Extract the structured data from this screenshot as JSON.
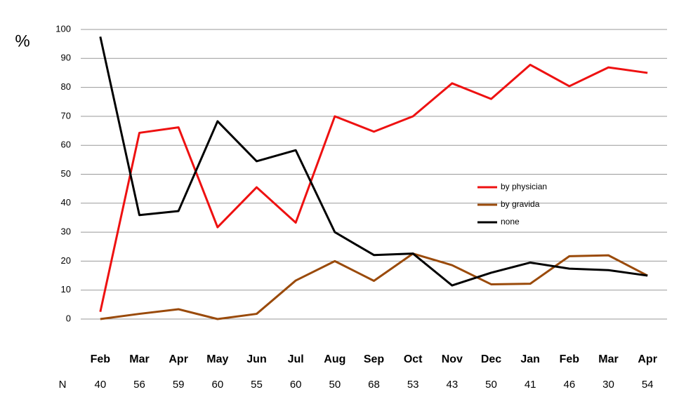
{
  "chart_data": {
    "type": "line",
    "y_label": "%",
    "categories": [
      "Feb",
      "Mar",
      "Apr",
      "May",
      "Jun",
      "Jul",
      "Aug",
      "Sep",
      "Oct",
      "Nov",
      "Dec",
      "Jan",
      "Feb",
      "Mar",
      "Apr"
    ],
    "n_label": "N",
    "n_values": [
      40,
      56,
      59,
      60,
      55,
      60,
      50,
      68,
      53,
      43,
      50,
      41,
      46,
      30,
      54
    ],
    "series": [
      {
        "name": "by physician",
        "color": "#ee1111",
        "values": [
          2.5,
          64.3,
          66.2,
          31.7,
          45.5,
          33.3,
          70,
          64.7,
          70,
          81.4,
          76,
          87.8,
          80.4,
          86.9,
          85
        ]
      },
      {
        "name": "by gravida",
        "color": "#9a4a0a",
        "values": [
          0,
          1.8,
          3.4,
          0,
          1.8,
          13.3,
          20,
          13.2,
          22.6,
          18.6,
          12,
          12.2,
          21.7,
          22,
          15
        ]
      },
      {
        "name": "none",
        "color": "#000000",
        "values": [
          97.5,
          35.9,
          37.3,
          68.3,
          54.5,
          58.3,
          30,
          22.1,
          22.6,
          11.6,
          16,
          19.5,
          17.4,
          16.9,
          15
        ]
      }
    ],
    "ylim": [
      0,
      100
    ],
    "yticks": [
      0,
      10,
      20,
      30,
      40,
      50,
      60,
      70,
      80,
      90,
      100
    ],
    "grid": true,
    "legend": "right"
  }
}
